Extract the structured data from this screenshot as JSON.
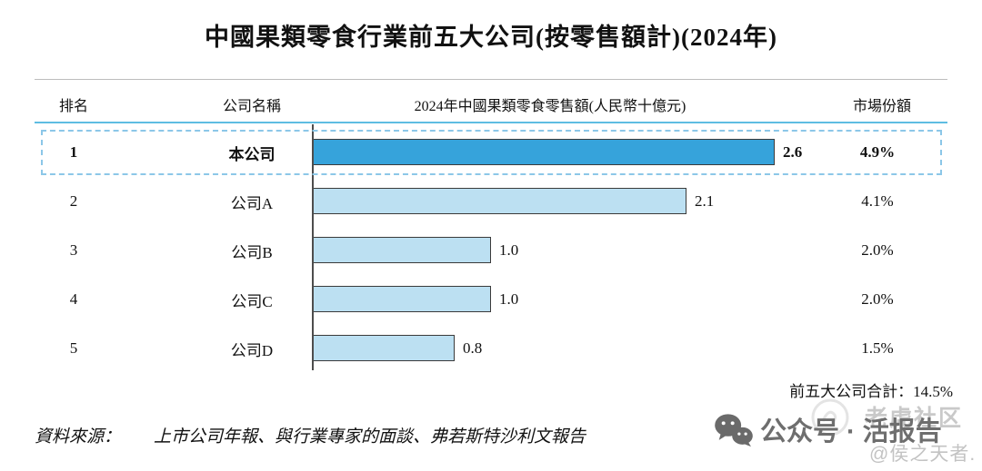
{
  "title": "中國果類零食行業前五大公司(按零售額計)(2024年)",
  "table": {
    "columns": [
      "排名",
      "公司名稱",
      "2024年中國果類零食零售額(人民幣十億元)",
      "市場份額"
    ]
  },
  "chart_data": {
    "type": "bar",
    "orientation": "horizontal",
    "title": "中國果類零食行業前五大公司(按零售額計)(2024年)",
    "value_axis_label": "2024年中國果類零食零售額(人民幣十億元)",
    "categories": [
      "本公司",
      "公司A",
      "公司B",
      "公司C",
      "公司D"
    ],
    "ranks": [
      "1",
      "2",
      "3",
      "4",
      "5"
    ],
    "values": [
      2.6,
      2.1,
      1.0,
      1.0,
      0.8
    ],
    "value_labels": [
      "2.6",
      "2.1",
      "1.0",
      "1.0",
      "0.8"
    ],
    "market_shares": [
      "4.9%",
      "4.1%",
      "2.0%",
      "2.0%",
      "1.5%"
    ],
    "xlim": [
      0,
      3
    ],
    "highlighted_index": 0,
    "grid": false,
    "legend": false
  },
  "total_note": "前五大公司合計：14.5%",
  "source": {
    "prefix": "資料來源：",
    "text": "上市公司年報、與行業專家的面談、弗若斯特沙利文報告"
  },
  "watermark": {
    "account_label": "公众号 · 活报告",
    "community_label": "老虎社区",
    "handle_label": "@侯之天者."
  },
  "colors": {
    "bar_highlight": "#36a3db",
    "bar_normal": "#bce0f2",
    "bar_border": "#3a3a3a",
    "header_rule": "#5ebde2",
    "highlight_dash": "#8cc7e8",
    "watermark_dark": "#6e6e6e",
    "watermark_light": "#c9c9c9"
  }
}
